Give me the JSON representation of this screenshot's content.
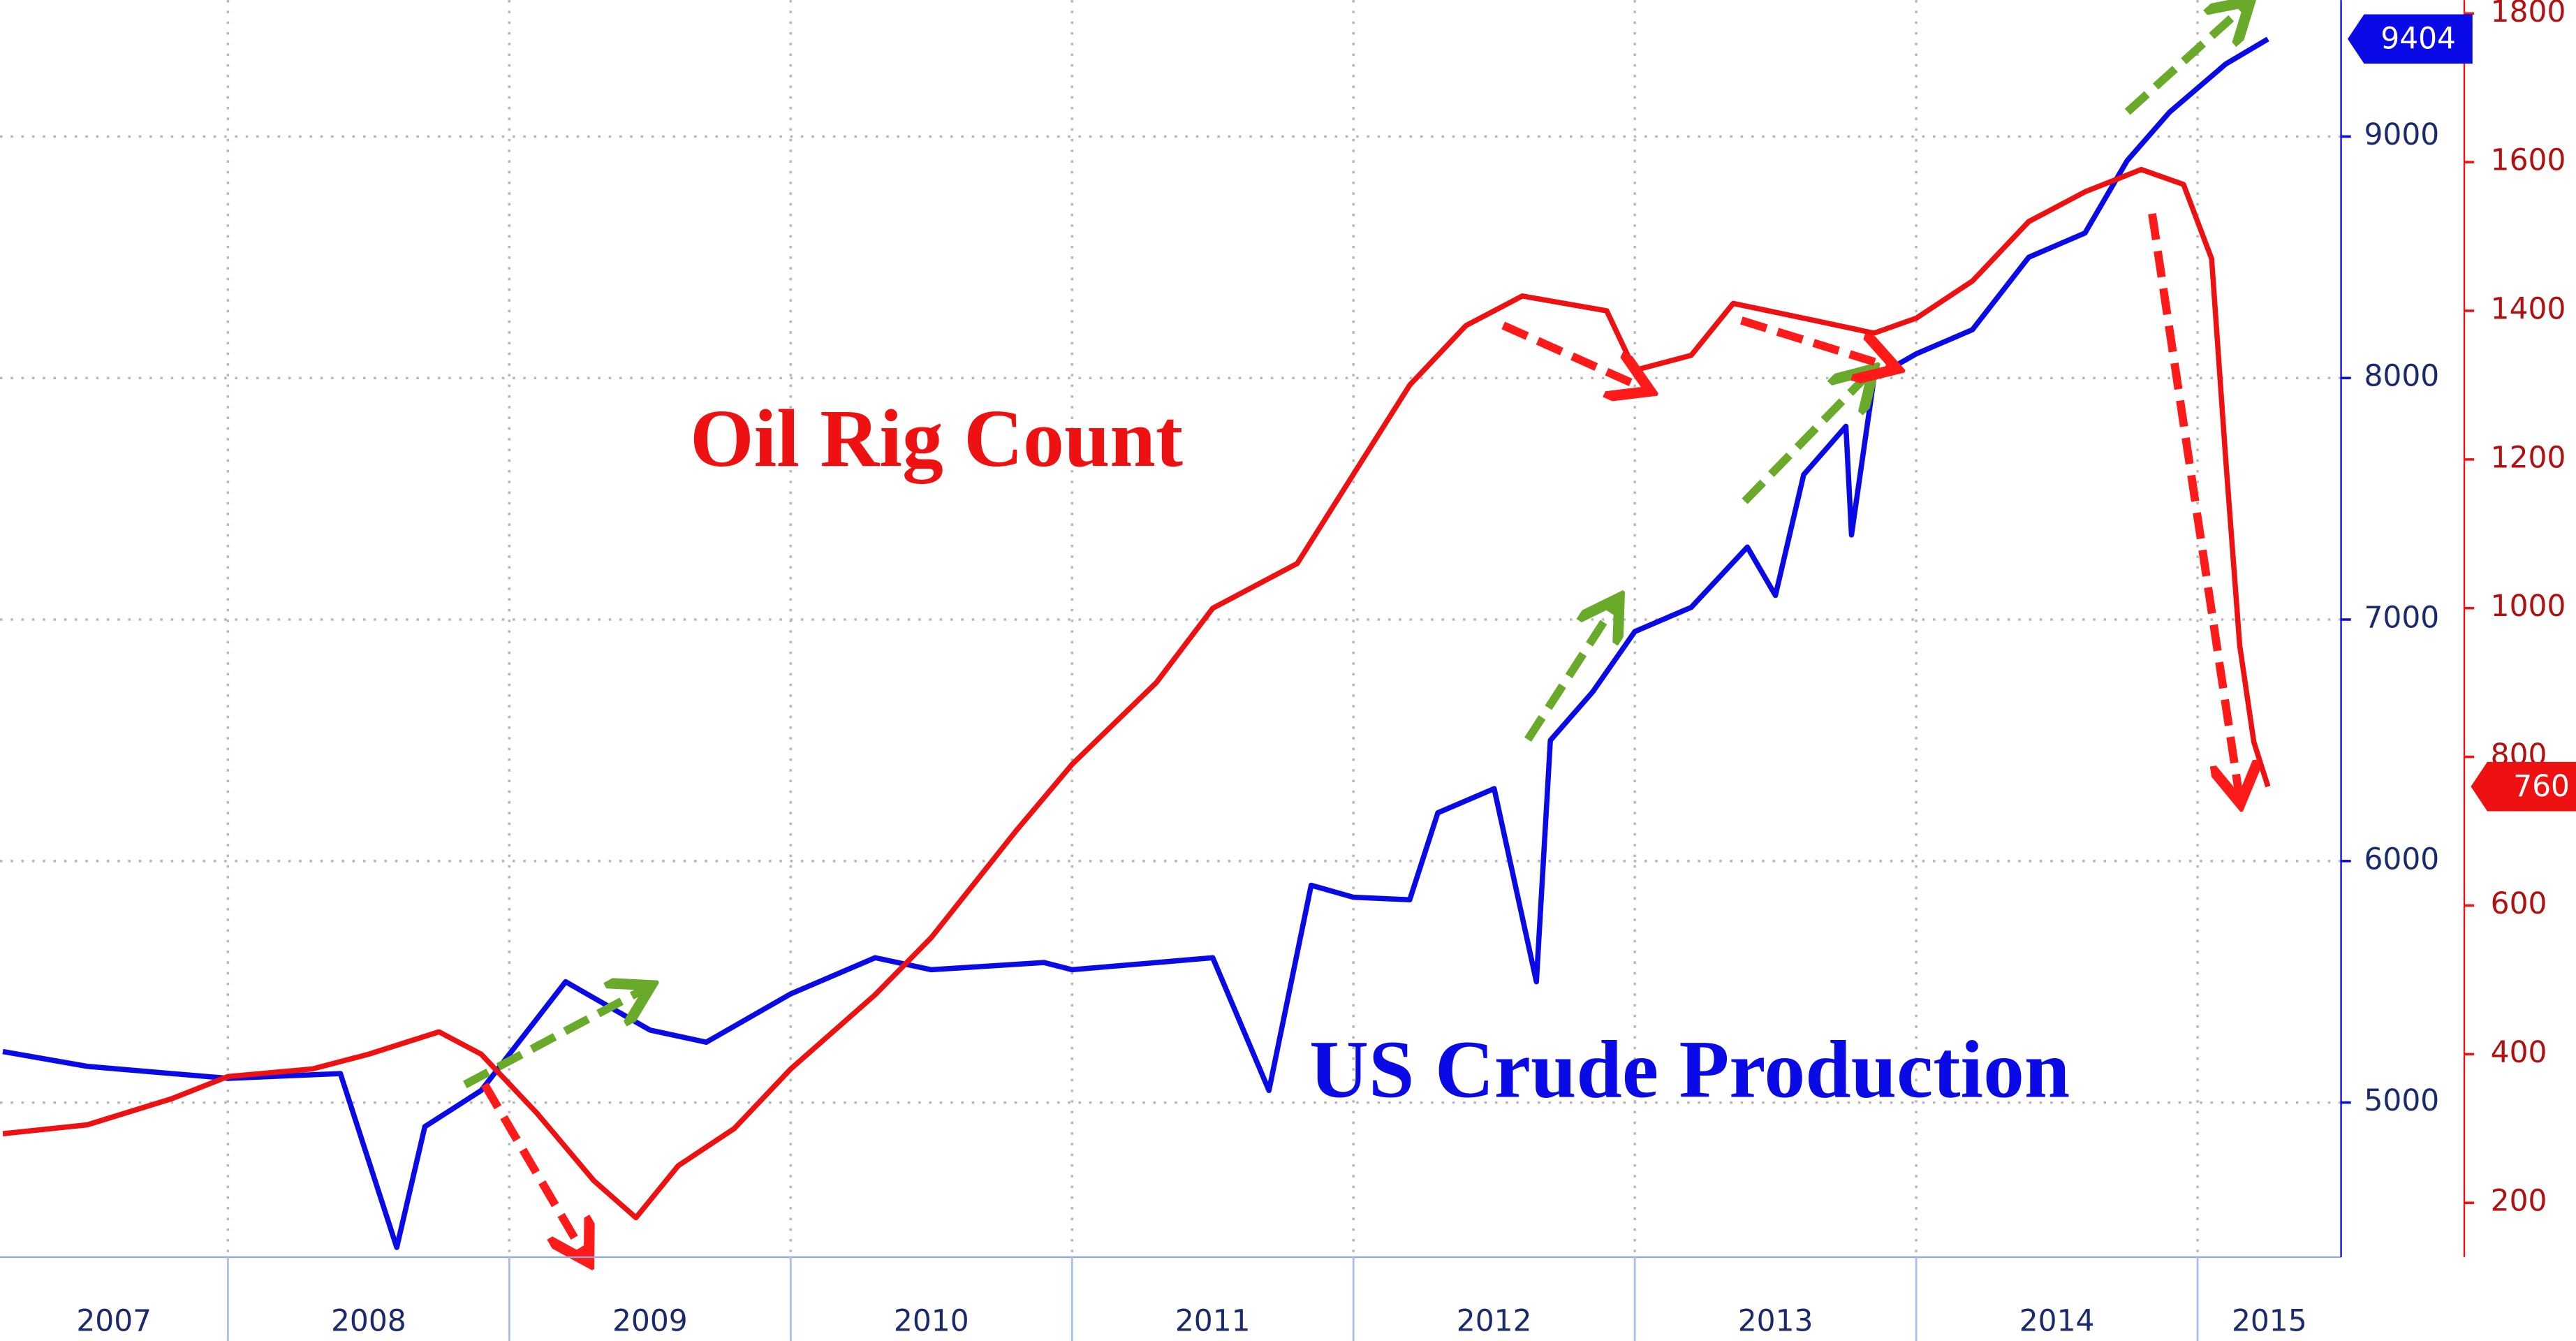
{
  "chart_data": {
    "type": "line",
    "annotations": [
      "Oil Rig Count",
      "US Crude Production"
    ],
    "xlim": [
      2007.19,
      2015.51
    ],
    "xticks": [
      2007,
      2008,
      2009,
      2010,
      2011,
      2012,
      2013,
      2014,
      2015
    ],
    "ylim": [
      4360,
      9565
    ],
    "yticks": [
      5000,
      6000,
      7000,
      8000,
      9000
    ],
    "y2lim": [
      127,
      1818
    ],
    "y2ticks": [
      200,
      400,
      600,
      800,
      1000,
      1200,
      1400,
      1600,
      1800
    ],
    "grid": true,
    "series": [
      {
        "name": "US Crude Production",
        "color": "#0a0ae6",
        "x": [
          2007.2,
          2007.5,
          2008.0,
          2008.4,
          2008.6,
          2008.7,
          2008.9,
          2009.2,
          2009.5,
          2009.7,
          2010.0,
          2010.3,
          2010.5,
          2010.9,
          2011.0,
          2011.5,
          2011.7,
          2011.85,
          2012.0,
          2012.2,
          2012.3,
          2012.5,
          2012.65,
          2012.7,
          2012.85,
          2013.0,
          2013.2,
          2013.4,
          2013.5,
          2013.6,
          2013.75,
          2013.77,
          2013.85,
          2014.0,
          2014.2,
          2014.4,
          2014.6,
          2014.75,
          2014.9,
          2015.1,
          2015.25
        ],
        "values": [
          5211,
          5150,
          5100,
          5120,
          4400,
          4900,
          5050,
          5500,
          5300,
          5250,
          5450,
          5600,
          5550,
          5580,
          5550,
          5600,
          5050,
          5900,
          5850,
          5840,
          6200,
          6300,
          5500,
          6500,
          6700,
          6950,
          7050,
          7300,
          7100,
          7600,
          7800,
          7350,
          8000,
          8100,
          8200,
          8500,
          8600,
          8900,
          9100,
          9300,
          9404
        ]
      },
      {
        "name": "Oil Rig Count",
        "color": "#ee1111",
        "axis": "y2",
        "x": [
          2007.2,
          2007.5,
          2007.8,
          2008.0,
          2008.3,
          2008.5,
          2008.75,
          2008.9,
          2009.1,
          2009.3,
          2009.45,
          2009.6,
          2009.8,
          2010.0,
          2010.3,
          2010.5,
          2010.8,
          2011.0,
          2011.3,
          2011.5,
          2011.8,
          2012.0,
          2012.2,
          2012.4,
          2012.6,
          2012.9,
          2013.0,
          2013.2,
          2013.35,
          2013.6,
          2013.85,
          2014.0,
          2014.2,
          2014.4,
          2014.6,
          2014.8,
          2014.95,
          2015.05,
          2015.1,
          2015.15,
          2015.2,
          2015.25
        ],
        "values": [
          293,
          305,
          340,
          370,
          380,
          400,
          430,
          400,
          320,
          230,
          180,
          250,
          300,
          380,
          480,
          557,
          700,
          790,
          900,
          1000,
          1060,
          1180,
          1300,
          1380,
          1420,
          1400,
          1320,
          1340,
          1410,
          1390,
          1370,
          1390,
          1440,
          1520,
          1560,
          1590,
          1570,
          1470,
          1200,
          950,
          820,
          760
        ]
      }
    ]
  }
}
